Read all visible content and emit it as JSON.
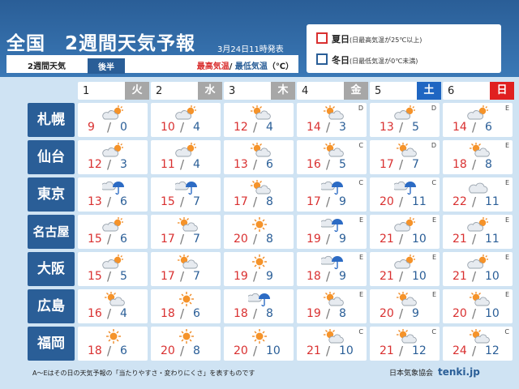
{
  "header": {
    "title": "全国　2週間天気予報",
    "issued": "3月24日11時発表",
    "sub_label": "2週間天気",
    "sub_tag": "後半",
    "unit_hi": "最高気温",
    "unit_sep": "/ ",
    "unit_lo": "最低気温",
    "unit_tail": "（℃）"
  },
  "legend": {
    "summer_label": "夏日",
    "summer_note": "(日最高気温が25℃以上)",
    "winter_label": "冬日",
    "winter_note": "(日最低気温が0℃未満)",
    "summer_color": "#d93030",
    "winter_color": "#2a5e97"
  },
  "days": [
    {
      "num": "1",
      "weekday": "火",
      "kind": "wk"
    },
    {
      "num": "2",
      "weekday": "水",
      "kind": "wk"
    },
    {
      "num": "3",
      "weekday": "木",
      "kind": "wk"
    },
    {
      "num": "4",
      "weekday": "金",
      "kind": "wk"
    },
    {
      "num": "5",
      "weekday": "土",
      "kind": "sat"
    },
    {
      "num": "6",
      "weekday": "日",
      "kind": "sun"
    }
  ],
  "cities": [
    {
      "name": "札幌",
      "cells": [
        {
          "icon": "cloud-sun-icon",
          "hi": "9",
          "lo": "0",
          "grade": ""
        },
        {
          "icon": "cloud-sun-icon",
          "hi": "10",
          "lo": "4",
          "grade": ""
        },
        {
          "icon": "sun-cloud-icon",
          "hi": "12",
          "lo": "4",
          "grade": ""
        },
        {
          "icon": "sun-cloud-icon",
          "hi": "14",
          "lo": "3",
          "grade": "D"
        },
        {
          "icon": "cloud-sun-icon",
          "hi": "13",
          "lo": "5",
          "grade": "D"
        },
        {
          "icon": "cloud-sun-icon",
          "hi": "14",
          "lo": "6",
          "grade": "E"
        }
      ]
    },
    {
      "name": "仙台",
      "cells": [
        {
          "icon": "cloud-sun-icon",
          "hi": "12",
          "lo": "3",
          "grade": ""
        },
        {
          "icon": "cloud-sun-icon",
          "hi": "11",
          "lo": "4",
          "grade": ""
        },
        {
          "icon": "sun-cloud-icon",
          "hi": "13",
          "lo": "6",
          "grade": ""
        },
        {
          "icon": "sun-cloud-icon",
          "hi": "16",
          "lo": "5",
          "grade": "C"
        },
        {
          "icon": "sun-cloud-icon",
          "hi": "17",
          "lo": "7",
          "grade": "D"
        },
        {
          "icon": "sun-cloud-icon",
          "hi": "18",
          "lo": "8",
          "grade": "E"
        }
      ]
    },
    {
      "name": "東京",
      "cells": [
        {
          "icon": "cloud-umbrella-icon",
          "hi": "13",
          "lo": "6",
          "grade": ""
        },
        {
          "icon": "cloud-umbrella-icon",
          "hi": "15",
          "lo": "7",
          "grade": ""
        },
        {
          "icon": "sun-cloud-icon",
          "hi": "17",
          "lo": "8",
          "grade": ""
        },
        {
          "icon": "cloud-umbrella-icon",
          "hi": "17",
          "lo": "9",
          "grade": "C"
        },
        {
          "icon": "cloud-umbrella-icon",
          "hi": "20",
          "lo": "11",
          "grade": "C"
        },
        {
          "icon": "cloud-icon",
          "hi": "22",
          "lo": "11",
          "grade": "E"
        }
      ]
    },
    {
      "name": "名古屋",
      "cells": [
        {
          "icon": "cloud-sun-icon",
          "hi": "15",
          "lo": "6",
          "grade": ""
        },
        {
          "icon": "sun-cloud-icon",
          "hi": "17",
          "lo": "7",
          "grade": ""
        },
        {
          "icon": "sun-icon",
          "hi": "20",
          "lo": "8",
          "grade": ""
        },
        {
          "icon": "cloud-umbrella-icon",
          "hi": "19",
          "lo": "9",
          "grade": "E"
        },
        {
          "icon": "cloud-sun-icon",
          "hi": "21",
          "lo": "10",
          "grade": "E"
        },
        {
          "icon": "cloud-sun-icon",
          "hi": "21",
          "lo": "11",
          "grade": "E"
        }
      ]
    },
    {
      "name": "大阪",
      "cells": [
        {
          "icon": "cloud-sun-icon",
          "hi": "15",
          "lo": "5",
          "grade": ""
        },
        {
          "icon": "sun-cloud-icon",
          "hi": "17",
          "lo": "7",
          "grade": ""
        },
        {
          "icon": "sun-icon",
          "hi": "19",
          "lo": "9",
          "grade": ""
        },
        {
          "icon": "cloud-umbrella-icon",
          "hi": "18",
          "lo": "9",
          "grade": "E"
        },
        {
          "icon": "cloud-sun-icon",
          "hi": "21",
          "lo": "10",
          "grade": "E"
        },
        {
          "icon": "cloud-sun-icon",
          "hi": "21",
          "lo": "10",
          "grade": "E"
        }
      ]
    },
    {
      "name": "広島",
      "cells": [
        {
          "icon": "sun-cloud-icon",
          "hi": "16",
          "lo": "4",
          "grade": ""
        },
        {
          "icon": "sun-icon",
          "hi": "18",
          "lo": "6",
          "grade": ""
        },
        {
          "icon": "cloud-umbrella-icon",
          "hi": "18",
          "lo": "8",
          "grade": ""
        },
        {
          "icon": "sun-cloud-icon",
          "hi": "19",
          "lo": "8",
          "grade": "E"
        },
        {
          "icon": "sun-cloud-icon",
          "hi": "20",
          "lo": "9",
          "grade": "E"
        },
        {
          "icon": "sun-cloud-icon",
          "hi": "20",
          "lo": "10",
          "grade": "E"
        }
      ]
    },
    {
      "name": "福岡",
      "cells": [
        {
          "icon": "sun-icon",
          "hi": "18",
          "lo": "6",
          "grade": ""
        },
        {
          "icon": "sun-icon",
          "hi": "20",
          "lo": "8",
          "grade": ""
        },
        {
          "icon": "sun-icon",
          "hi": "20",
          "lo": "10",
          "grade": ""
        },
        {
          "icon": "sun-cloud-icon",
          "hi": "21",
          "lo": "10",
          "grade": "C"
        },
        {
          "icon": "sun-cloud-icon",
          "hi": "21",
          "lo": "12",
          "grade": "C"
        },
        {
          "icon": "sun-cloud-icon",
          "hi": "24",
          "lo": "12",
          "grade": "C"
        }
      ]
    }
  ],
  "separator": "/",
  "footnote": "A～Eはその日の天気予報の「当たりやすさ・変わりにくさ」を表すものです",
  "credit": "日本気象協会",
  "logo": "tenki.jp"
}
